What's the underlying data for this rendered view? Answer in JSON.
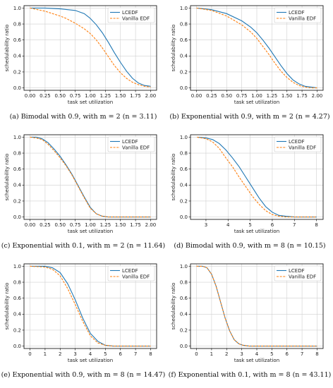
{
  "colors": {
    "lcedf": "#1f77b4",
    "vanilla": "#ff7f0e"
  },
  "chart_data": [
    {
      "type": "line",
      "caption": "(a)  Bimodal with 0.9, with m = 2 (n = 3.11)",
      "xlabel": "task set utilization",
      "ylabel": "schedulability ratio",
      "xlim": [
        -0.1,
        2.1
      ],
      "ylim": [
        -0.03,
        1.03
      ],
      "xticks": [
        "0.00",
        "0.25",
        "0.50",
        "0.75",
        "1.00",
        "1.25",
        "1.50",
        "1.75",
        "2.00"
      ],
      "xtick_values": [
        0,
        0.25,
        0.5,
        0.75,
        1.0,
        1.25,
        1.5,
        1.75,
        2.0
      ],
      "yticks": [
        "0.0",
        "0.2",
        "0.4",
        "0.6",
        "0.8",
        "1.0"
      ],
      "ytick_values": [
        0,
        0.2,
        0.4,
        0.6,
        0.8,
        1.0
      ],
      "grid": true,
      "legend": "top-right",
      "series": [
        {
          "name": "LCEDF",
          "style": "solid",
          "x": [
            0,
            0.25,
            0.5,
            0.75,
            0.9,
            1.0,
            1.1,
            1.2,
            1.3,
            1.4,
            1.5,
            1.6,
            1.7,
            1.8,
            1.9,
            2.0
          ],
          "y": [
            1.0,
            1.0,
            0.99,
            0.97,
            0.93,
            0.87,
            0.79,
            0.69,
            0.57,
            0.44,
            0.32,
            0.21,
            0.12,
            0.06,
            0.03,
            0.02
          ]
        },
        {
          "name": "Vanilla EDF",
          "style": "dashed",
          "x": [
            0,
            0.25,
            0.5,
            0.6,
            0.75,
            0.9,
            1.0,
            1.1,
            1.2,
            1.3,
            1.4,
            1.5,
            1.6,
            1.7,
            1.8,
            1.9,
            2.0
          ],
          "y": [
            1.0,
            0.96,
            0.9,
            0.87,
            0.81,
            0.74,
            0.68,
            0.6,
            0.5,
            0.39,
            0.28,
            0.19,
            0.12,
            0.07,
            0.04,
            0.02,
            0.01
          ]
        }
      ]
    },
    {
      "type": "line",
      "caption": "(b)  Exponential with 0.9, with m = 2 (n = 4.27)",
      "xlabel": "task set utilization",
      "ylabel": "schedulability ratio",
      "xlim": [
        -0.1,
        2.1
      ],
      "ylim": [
        -0.03,
        1.03
      ],
      "xticks": [
        "0.00",
        "0.25",
        "0.50",
        "0.75",
        "1.00",
        "1.25",
        "1.50",
        "1.75",
        "2.00"
      ],
      "xtick_values": [
        0,
        0.25,
        0.5,
        0.75,
        1.0,
        1.25,
        1.5,
        1.75,
        2.0
      ],
      "yticks": [
        "0.0",
        "0.2",
        "0.4",
        "0.6",
        "0.8",
        "1.0"
      ],
      "ytick_values": [
        0,
        0.2,
        0.4,
        0.6,
        0.8,
        1.0
      ],
      "grid": true,
      "legend": "top-right",
      "series": [
        {
          "name": "LCEDF",
          "style": "solid",
          "x": [
            0,
            0.25,
            0.5,
            0.75,
            0.9,
            1.0,
            1.1,
            1.2,
            1.3,
            1.4,
            1.5,
            1.6,
            1.7,
            1.8,
            1.9,
            2.0
          ],
          "y": [
            1.0,
            0.98,
            0.93,
            0.84,
            0.76,
            0.69,
            0.6,
            0.5,
            0.39,
            0.28,
            0.18,
            0.1,
            0.05,
            0.02,
            0.01,
            0.0
          ]
        },
        {
          "name": "Vanilla EDF",
          "style": "dashed",
          "x": [
            0,
            0.25,
            0.5,
            0.75,
            0.9,
            1.0,
            1.1,
            1.2,
            1.3,
            1.4,
            1.5,
            1.6,
            1.7,
            1.8,
            1.9,
            2.0
          ],
          "y": [
            1.0,
            0.97,
            0.9,
            0.79,
            0.7,
            0.62,
            0.52,
            0.42,
            0.31,
            0.21,
            0.13,
            0.07,
            0.03,
            0.01,
            0.0,
            0.0
          ]
        }
      ]
    },
    {
      "type": "line",
      "caption": "(c)  Exponential with 0.1, with m = 2 (n = 11.64)",
      "xlabel": "task set utilization",
      "ylabel": "schedulability ratio",
      "xlim": [
        -0.1,
        2.1
      ],
      "ylim": [
        -0.03,
        1.03
      ],
      "xticks": [
        "0.00",
        "0.25",
        "0.50",
        "0.75",
        "1.00",
        "1.25",
        "1.50",
        "1.75",
        "2.00"
      ],
      "xtick_values": [
        0,
        0.25,
        0.5,
        0.75,
        1.0,
        1.25,
        1.5,
        1.75,
        2.0
      ],
      "yticks": [
        "0.0",
        "0.2",
        "0.4",
        "0.6",
        "0.8",
        "1.0"
      ],
      "ytick_values": [
        0,
        0.2,
        0.4,
        0.6,
        0.8,
        1.0
      ],
      "grid": true,
      "legend": "top-right",
      "series": [
        {
          "name": "LCEDF",
          "style": "solid",
          "x": [
            0,
            0.1,
            0.2,
            0.3,
            0.4,
            0.5,
            0.6,
            0.7,
            0.8,
            0.9,
            1.0,
            1.1,
            1.2,
            1.3,
            1.5,
            2.0
          ],
          "y": [
            1.0,
            1.0,
            0.98,
            0.93,
            0.85,
            0.76,
            0.65,
            0.53,
            0.39,
            0.25,
            0.12,
            0.04,
            0.01,
            0.0,
            0.0,
            0.0
          ]
        },
        {
          "name": "Vanilla EDF",
          "style": "dashed",
          "x": [
            0,
            0.1,
            0.2,
            0.3,
            0.4,
            0.5,
            0.6,
            0.7,
            0.8,
            0.9,
            1.0,
            1.1,
            1.2,
            1.3,
            1.5,
            2.0
          ],
          "y": [
            1.0,
            0.99,
            0.97,
            0.91,
            0.83,
            0.74,
            0.64,
            0.52,
            0.38,
            0.24,
            0.11,
            0.04,
            0.01,
            0.0,
            0.0,
            0.0
          ]
        }
      ]
    },
    {
      "type": "line",
      "caption": "(d)  Bimodal with 0.9, with m = 8 (n = 10.15)",
      "xlabel": "task set utilization",
      "ylabel": "schedulability ratio",
      "xlim": [
        2.3,
        8.3
      ],
      "ylim": [
        -0.03,
        1.03
      ],
      "xticks": [
        "3",
        "4",
        "5",
        "6",
        "7",
        "8"
      ],
      "xtick_values": [
        3,
        4,
        5,
        6,
        7,
        8
      ],
      "yticks": [
        "0.0",
        "0.2",
        "0.4",
        "0.6",
        "0.8",
        "1.0"
      ],
      "ytick_values": [
        0,
        0.2,
        0.4,
        0.6,
        0.8,
        1.0
      ],
      "grid": true,
      "legend": "top-right",
      "series": [
        {
          "name": "LCEDF",
          "style": "solid",
          "x": [
            2.6,
            3.0,
            3.3,
            3.6,
            3.9,
            4.2,
            4.5,
            4.8,
            5.1,
            5.4,
            5.7,
            6.0,
            6.3,
            6.6,
            7.0,
            8.0
          ],
          "y": [
            1.0,
            0.99,
            0.97,
            0.92,
            0.84,
            0.74,
            0.63,
            0.5,
            0.37,
            0.24,
            0.13,
            0.06,
            0.02,
            0.01,
            0.0,
            0.0
          ]
        },
        {
          "name": "Vanilla EDF",
          "style": "dashed",
          "x": [
            2.6,
            3.0,
            3.3,
            3.6,
            3.9,
            4.2,
            4.5,
            4.8,
            5.1,
            5.4,
            5.7,
            6.0,
            6.3,
            6.6,
            7.0,
            8.0
          ],
          "y": [
            1.0,
            0.98,
            0.94,
            0.86,
            0.74,
            0.63,
            0.5,
            0.38,
            0.26,
            0.16,
            0.08,
            0.03,
            0.01,
            0.0,
            0.0,
            0.0
          ]
        }
      ]
    },
    {
      "type": "line",
      "caption": "(e)  Exponential with 0.9, with m = 8 (n = 14.47)",
      "xlabel": "task set utilization",
      "ylabel": "schedulability ratio",
      "xlim": [
        -0.4,
        8.4
      ],
      "ylim": [
        -0.03,
        1.03
      ],
      "xticks": [
        "0",
        "1",
        "2",
        "3",
        "4",
        "5",
        "6",
        "7",
        "8"
      ],
      "xtick_values": [
        0,
        1,
        2,
        3,
        4,
        5,
        6,
        7,
        8
      ],
      "yticks": [
        "0.0",
        "0.2",
        "0.4",
        "0.6",
        "0.8",
        "1.0"
      ],
      "ytick_values": [
        0,
        0.2,
        0.4,
        0.6,
        0.8,
        1.0
      ],
      "grid": true,
      "legend": "top-right",
      "series": [
        {
          "name": "LCEDF",
          "style": "solid",
          "x": [
            0,
            1.0,
            1.5,
            2.0,
            2.5,
            3.0,
            3.5,
            4.0,
            4.5,
            5.0,
            5.5,
            6.0,
            7.0,
            8.0
          ],
          "y": [
            1.0,
            1.0,
            0.98,
            0.92,
            0.78,
            0.58,
            0.35,
            0.16,
            0.06,
            0.01,
            0.0,
            0.0,
            0.0,
            0.0
          ]
        },
        {
          "name": "Vanilla EDF",
          "style": "dashed",
          "x": [
            0,
            1.0,
            1.5,
            2.0,
            2.5,
            3.0,
            3.5,
            4.0,
            4.5,
            5.0,
            5.5,
            6.0,
            7.0,
            8.0
          ],
          "y": [
            1.0,
            0.99,
            0.96,
            0.88,
            0.72,
            0.52,
            0.31,
            0.13,
            0.04,
            0.01,
            0.0,
            0.0,
            0.0,
            0.0
          ]
        }
      ]
    },
    {
      "type": "line",
      "caption": "(f)  Exponential with 0.1, with m = 8 (n = 43.11)",
      "xlabel": "task set utilization",
      "ylabel": "schedulability ratio",
      "xlim": [
        -0.4,
        8.4
      ],
      "ylim": [
        -0.03,
        1.03
      ],
      "xticks": [
        "0",
        "1",
        "2",
        "3",
        "4",
        "5",
        "6",
        "7",
        "8"
      ],
      "xtick_values": [
        0,
        1,
        2,
        3,
        4,
        5,
        6,
        7,
        8
      ],
      "yticks": [
        "0.0",
        "0.2",
        "0.4",
        "0.6",
        "0.8",
        "1.0"
      ],
      "ytick_values": [
        0,
        0.2,
        0.4,
        0.6,
        0.8,
        1.0
      ],
      "grid": true,
      "legend": "top-right",
      "series": [
        {
          "name": "LCEDF",
          "style": "solid",
          "x": [
            0,
            0.4,
            0.7,
            1.0,
            1.3,
            1.6,
            1.9,
            2.2,
            2.5,
            2.8,
            3.1,
            3.5,
            4.0,
            8.0
          ],
          "y": [
            1.0,
            1.0,
            0.98,
            0.9,
            0.75,
            0.55,
            0.35,
            0.19,
            0.08,
            0.03,
            0.01,
            0.0,
            0.0,
            0.0
          ]
        },
        {
          "name": "Vanilla EDF",
          "style": "dashed",
          "x": [
            0,
            0.4,
            0.7,
            1.0,
            1.3,
            1.6,
            1.9,
            2.2,
            2.5,
            2.8,
            3.1,
            3.5,
            4.0,
            8.0
          ],
          "y": [
            1.0,
            1.0,
            0.98,
            0.9,
            0.75,
            0.55,
            0.35,
            0.19,
            0.08,
            0.03,
            0.01,
            0.0,
            0.0,
            0.0
          ]
        }
      ]
    }
  ]
}
